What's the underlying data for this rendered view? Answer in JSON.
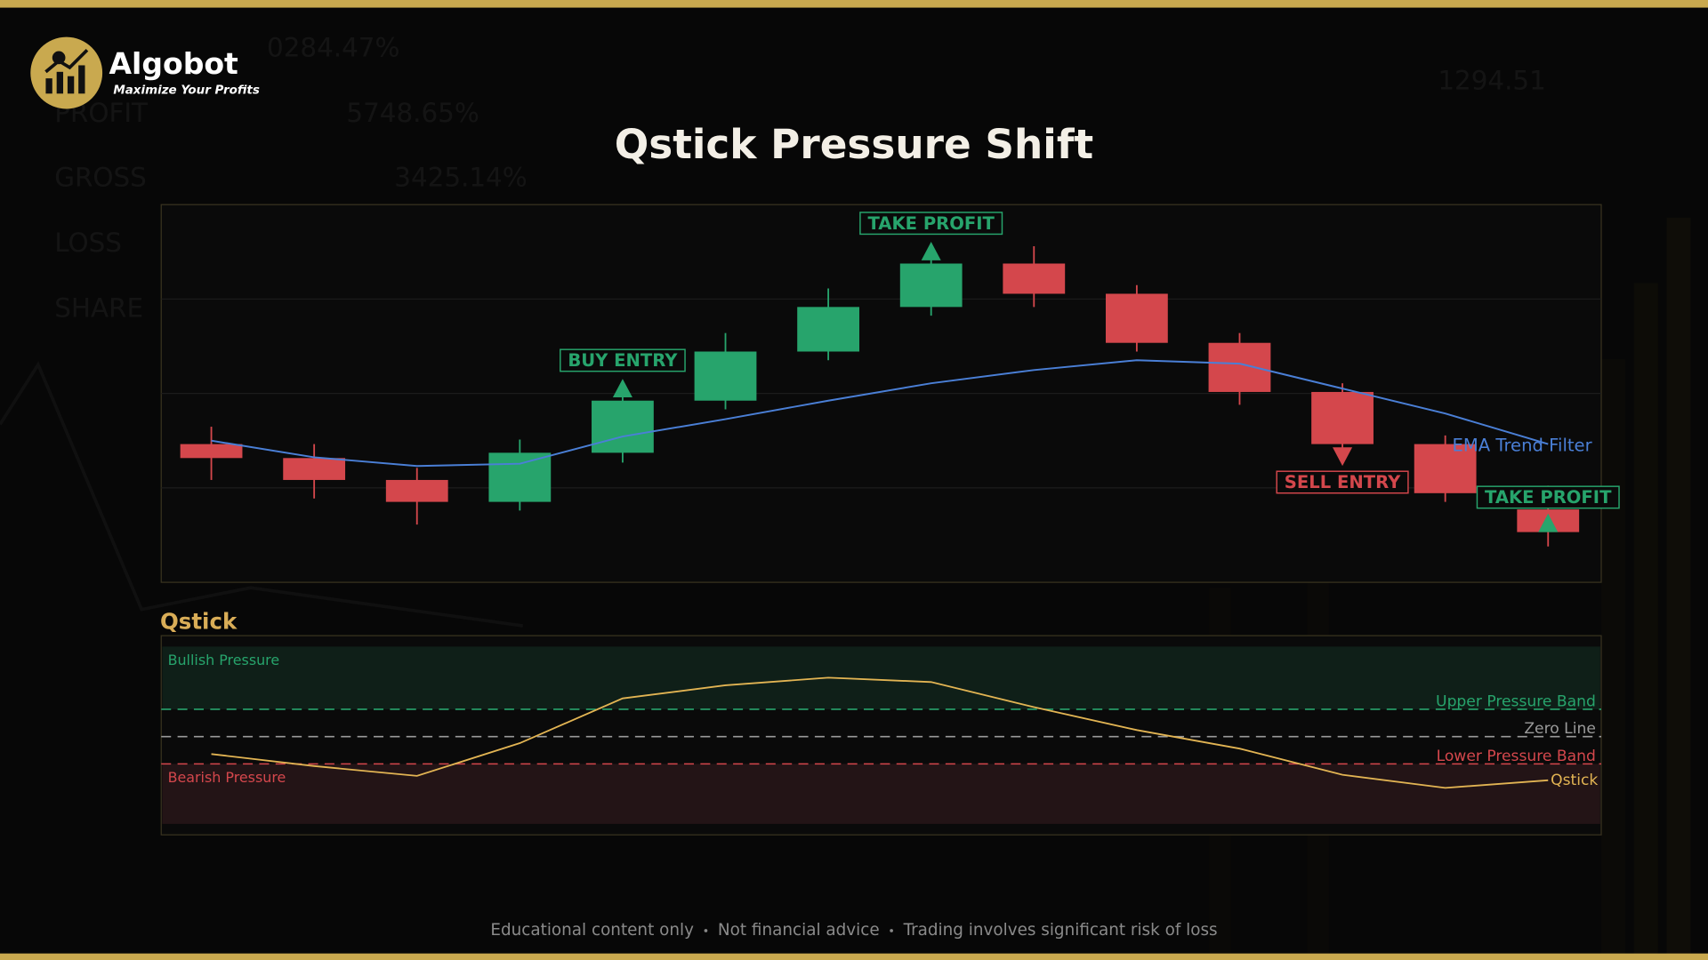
{
  "header": {
    "brand": "Algobot",
    "tagline": "Maximize Your Profits"
  },
  "background_text": [
    "0284.47%",
    "PROFIT",
    "5748.65%",
    "GROSS",
    "3425.14%",
    "LOSS",
    "SHARE",
    "1294.51"
  ],
  "chart_data": [
    {
      "type": "candlestick",
      "title": "Qstick Pressure Shift",
      "ylim": [
        0,
        100
      ],
      "yticks": [
        25,
        50,
        75
      ],
      "grid": true,
      "up_color": "#27a46c",
      "down_color": "#d4474c",
      "open": [
        36.6,
        32.9,
        27.1,
        21.3,
        34.3,
        48.1,
        61.1,
        72.9,
        84.4,
        76.4,
        63.4,
        50.4,
        36.6,
        19.3
      ],
      "high": [
        41.2,
        36.6,
        30.3,
        37.8,
        50.4,
        66.0,
        77.8,
        87.3,
        89.0,
        78.7,
        66.0,
        52.7,
        38.9,
        25.6
      ],
      "low": [
        27.1,
        22.2,
        15.3,
        19.0,
        31.7,
        45.8,
        58.8,
        70.6,
        72.9,
        61.1,
        47.0,
        34.6,
        21.3,
        9.5
      ],
      "close": [
        32.9,
        27.1,
        21.3,
        34.3,
        48.1,
        61.1,
        72.9,
        84.4,
        76.4,
        63.4,
        50.4,
        36.6,
        23.6,
        13.3
      ],
      "series": [
        {
          "name": "EMA Trend Filter",
          "color": "#4a7fd6",
          "values": [
            37.5,
            33.1,
            30.8,
            31.4,
            38.6,
            43.2,
            48.1,
            52.7,
            56.2,
            58.8,
            57.9,
            51.3,
            44.7,
            36.6
          ]
        }
      ],
      "annotations": [
        {
          "label": "BUY ENTRY",
          "at": 4,
          "position": "above",
          "color": "#27a46c"
        },
        {
          "label": "TAKE PROFIT",
          "at": 7,
          "position": "above",
          "color": "#27a46c"
        },
        {
          "label": "SELL ENTRY",
          "at": 11,
          "position": "below",
          "color": "#d4474c"
        },
        {
          "label": "TAKE PROFIT",
          "at": 13,
          "position": "inside",
          "color": "#27a46c"
        }
      ]
    },
    {
      "type": "line",
      "title": "Qstick",
      "ylim": [
        -3.6,
        3.7
      ],
      "series": [
        {
          "name": "Qstick",
          "color": "#e2b453",
          "values": [
            -0.64,
            -1.08,
            -1.44,
            -0.24,
            1.4,
            1.88,
            2.16,
            2.0,
            1.08,
            0.24,
            -0.44,
            -1.4,
            -1.88,
            -1.6
          ]
        }
      ],
      "bands": [
        {
          "name": "Upper Pressure Band",
          "value": 1,
          "color": "#27a46c"
        },
        {
          "name": "Zero Line",
          "value": 0,
          "color": "#9a9a9a"
        },
        {
          "name": "Lower Pressure Band",
          "value": -1,
          "color": "#d4474c"
        }
      ],
      "zones": [
        {
          "name": "Bullish Pressure",
          "range": [
            1,
            3.3
          ],
          "color": "#27a46c",
          "fill": "#0f1f18"
        },
        {
          "name": "Bearish Pressure",
          "range": [
            -1,
            -3.2
          ],
          "color": "#d4474c",
          "fill": "#231416"
        }
      ]
    }
  ],
  "footer": [
    "Educational content only",
    "Not financial advice",
    "Trading involves significant risk of loss"
  ]
}
